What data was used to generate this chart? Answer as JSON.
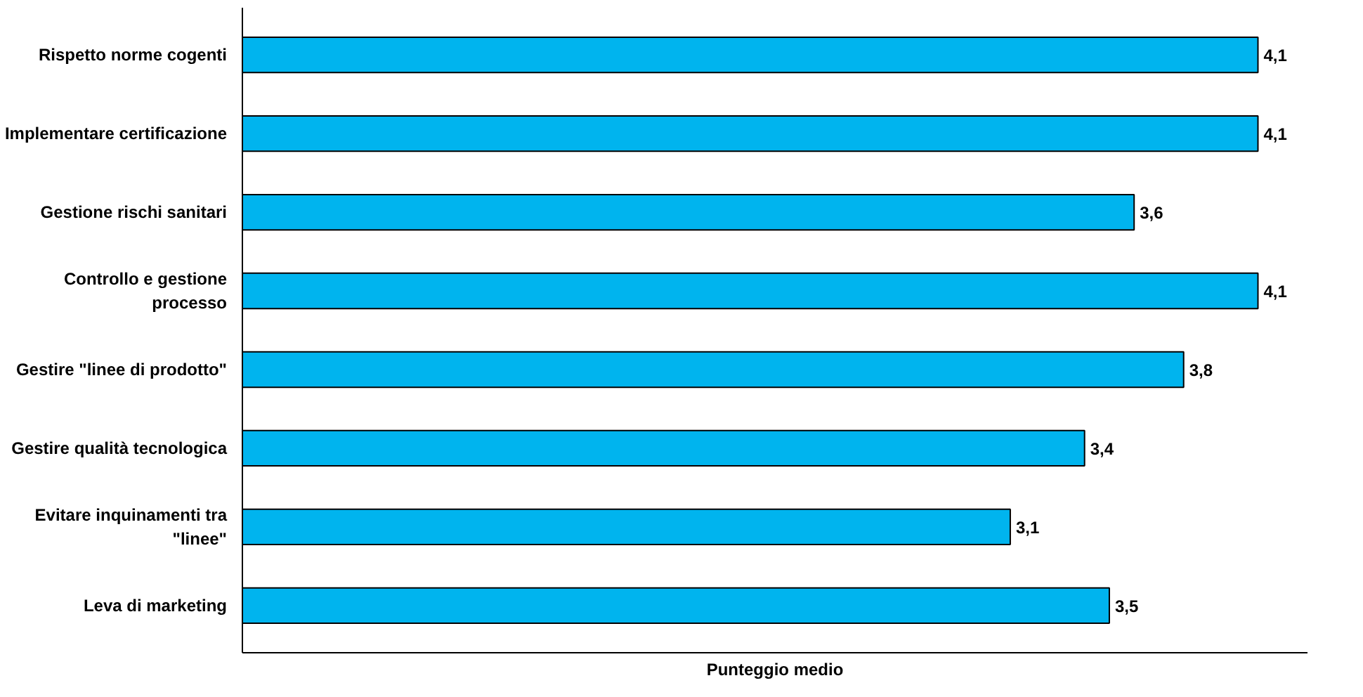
{
  "chart_data": {
    "type": "bar",
    "orientation": "horizontal",
    "xlabel": "Punteggio medio",
    "categories": [
      "Rispetto norme cogenti",
      "Implementare certificazione",
      "Gestione rischi sanitari",
      "Controllo e gestione\nprocesso",
      "Gestire \"linee di prodotto\"",
      "Gestire qualità tecnologica",
      "Evitare inquinamenti tra\n\"linee\"",
      "Leva di marketing"
    ],
    "values": [
      4.1,
      4.1,
      3.6,
      4.1,
      3.8,
      3.4,
      3.1,
      3.5
    ],
    "value_labels": [
      "4,1",
      "4,1",
      "3,6",
      "4,1",
      "3,8",
      "3,4",
      "3,1",
      "3,5"
    ],
    "color": "#00b4ee",
    "xlim": [
      0,
      4.3
    ],
    "tick_labels": "y",
    "grid": false
  }
}
